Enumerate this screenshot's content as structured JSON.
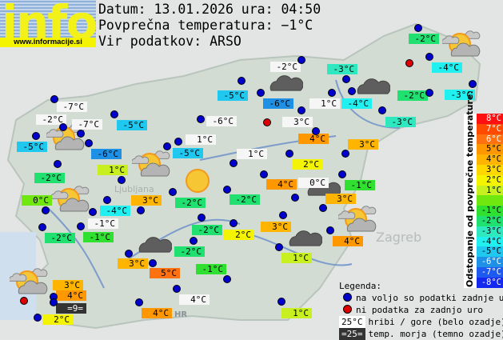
{
  "logo": {
    "text": "info",
    "url": "www.informacije.si"
  },
  "header": {
    "date_line": "Datum: 13.01.2026 ura: 04:50",
    "avg_line": "Povprečna temperatura: −1°C",
    "source_line": "Vir podatkov: ARSO"
  },
  "colors": {
    "white": "#f6f6f6",
    "sea": "#333333",
    "c8": "#ff1010",
    "c7": "#ff4a00",
    "c6": "#ff7010",
    "c5": "#ff9800",
    "c4": "#ffb400",
    "c3": "#ffd800",
    "c2": "#f4f400",
    "c1": "#c8f020",
    "c0": "#70e810",
    "cm1": "#30e030",
    "cm2": "#20e070",
    "cm3": "#30e8c0",
    "cm4": "#20f0f0",
    "cm5": "#20c8f0",
    "cm6": "#1e90e6",
    "cm7": "#1e5af0",
    "cm8": "#1428f0",
    "dot_ok": "#0000cc",
    "dot_missing": "#dd0000"
  },
  "stations": [
    {
      "temp": "-2°C",
      "bg": "cm2"
    },
    {
      "temp": "-2°C",
      "bg": "white"
    },
    {
      "temp": "-3°C",
      "bg": "cm3"
    },
    {
      "temp": "-4°C",
      "bg": "cm4"
    },
    {
      "temp": "-2°C",
      "bg": "cm2"
    },
    {
      "temp": "-3°C",
      "bg": "cm4"
    },
    {
      "temp": "-3°C",
      "bg": "cm3"
    },
    {
      "temp": "-4°C",
      "bg": "cm4"
    },
    {
      "temp": "1°C",
      "bg": "white"
    },
    {
      "temp": "-6°C",
      "bg": "cm6"
    },
    {
      "temp": "-5°C",
      "bg": "cm5"
    },
    {
      "temp": "3°C",
      "bg": "white"
    },
    {
      "temp": "4°C",
      "bg": "c5"
    },
    {
      "temp": "3°C",
      "bg": "c4"
    },
    {
      "temp": "1°C",
      "bg": "white"
    },
    {
      "temp": "2°C",
      "bg": "c2"
    },
    {
      "temp": "4°C",
      "bg": "c5"
    },
    {
      "temp": "0°C",
      "bg": "white"
    },
    {
      "temp": "-1°C",
      "bg": "cm1"
    },
    {
      "temp": "3°C",
      "bg": "c4"
    },
    {
      "temp": "-2°C",
      "bg": "cm2"
    },
    {
      "temp": "3°C",
      "bg": "c4"
    },
    {
      "temp": "2°C",
      "bg": "c2"
    },
    {
      "temp": "-2°C",
      "bg": "cm2"
    },
    {
      "temp": "4°C",
      "bg": "c5"
    },
    {
      "temp": "1°C",
      "bg": "c1"
    },
    {
      "temp": "-2°C",
      "bg": "cm2"
    },
    {
      "temp": "-1°C",
      "bg": "cm1"
    },
    {
      "temp": "5°C",
      "bg": "c6"
    },
    {
      "temp": "3°C",
      "bg": "c4"
    },
    {
      "temp": "4°C",
      "bg": "white"
    },
    {
      "temp": "4°C",
      "bg": "c5"
    },
    {
      "temp": "1°C",
      "bg": "c1"
    },
    {
      "temp": "3°C",
      "bg": "c4"
    },
    {
      "temp": "4°C",
      "bg": "c5"
    },
    {
      "temp": "=9=",
      "bg": "sea"
    },
    {
      "temp": "2°C",
      "bg": "c2"
    },
    {
      "temp": "-1°C",
      "bg": "white"
    },
    {
      "temp": "-1°C",
      "bg": "cm1"
    },
    {
      "temp": "-2°C",
      "bg": "cm2"
    },
    {
      "temp": "-4°C",
      "bg": "cm4"
    },
    {
      "temp": "3°C",
      "bg": "c4"
    },
    {
      "temp": "-2°C",
      "bg": "cm2"
    },
    {
      "temp": "0°C",
      "bg": "c0"
    },
    {
      "temp": "-2°C",
      "bg": "cm2"
    },
    {
      "temp": "1°C",
      "bg": "c1"
    },
    {
      "temp": "-5°C",
      "bg": "cm5"
    },
    {
      "temp": "-2°C",
      "bg": "white"
    },
    {
      "temp": "-7°C",
      "bg": "white"
    },
    {
      "temp": "-6°C",
      "bg": "cm6"
    },
    {
      "temp": "-5°C",
      "bg": "cm5"
    },
    {
      "temp": "-7°C",
      "bg": "white"
    },
    {
      "temp": "-6°C",
      "bg": "white"
    },
    {
      "temp": "1°C",
      "bg": "white"
    },
    {
      "temp": "-5°C",
      "bg": "cm5"
    }
  ],
  "weather_icons": [
    "partly-cloudy",
    "partly-cloudy",
    "partly-cloudy",
    "partly-cloudy",
    "partly-cloudy",
    "partly-cloudy",
    "cloudy",
    "cloudy",
    "cloudy",
    "cloudy",
    "cloudy",
    "sunny"
  ],
  "scale": {
    "title": "Odstopanje od povprečne temperature:",
    "rows": [
      {
        "label": "8°C",
        "bg": "c8",
        "fg": "#ffffff"
      },
      {
        "label": "7°C",
        "bg": "c7",
        "fg": "#ffffff"
      },
      {
        "label": "6°C",
        "bg": "c6",
        "fg": "#ffffff"
      },
      {
        "label": "5°C",
        "bg": "c5",
        "fg": "#000000"
      },
      {
        "label": "4°C",
        "bg": "c4",
        "fg": "#000000"
      },
      {
        "label": "3°C",
        "bg": "c3",
        "fg": "#000000"
      },
      {
        "label": "2°C",
        "bg": "c2",
        "fg": "#000000"
      },
      {
        "label": "1°C",
        "bg": "c1",
        "fg": "#000000"
      },
      {
        "label": "",
        "bg": "c0",
        "fg": "#000000"
      },
      {
        "label": "-1°C",
        "bg": "cm1",
        "fg": "#000000"
      },
      {
        "label": "-2°C",
        "bg": "cm2",
        "fg": "#000000"
      },
      {
        "label": "-3°C",
        "bg": "cm3",
        "fg": "#000000"
      },
      {
        "label": "-4°C",
        "bg": "cm4",
        "fg": "#000000"
      },
      {
        "label": "-5°C",
        "bg": "cm5",
        "fg": "#000000"
      },
      {
        "label": "-6°C",
        "bg": "cm6",
        "fg": "#ffffff"
      },
      {
        "label": "-7°C",
        "bg": "cm7",
        "fg": "#ffffff"
      },
      {
        "label": "-8°C",
        "bg": "cm8",
        "fg": "#ffffff"
      }
    ]
  },
  "legend": {
    "title": "Legenda:",
    "ok": "na voljo so podatki zadnje ure",
    "missing": "ni podatka za zadnjo uro",
    "hill_sample": "25°C",
    "hill_text": "hribi / gore (belo ozadje)",
    "sea_sample": "=25=",
    "sea_text": "temp. morja (temno ozadje)"
  },
  "map_labels": {
    "zagreb": "Zagreb",
    "ljubljana": "Ljubljana",
    "hr": "HR"
  }
}
